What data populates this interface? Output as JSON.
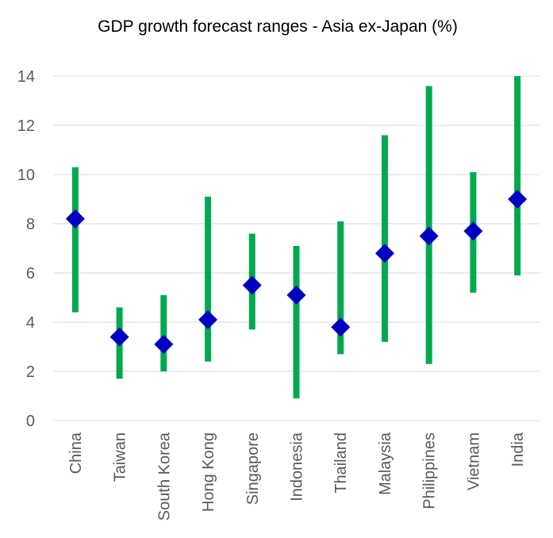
{
  "chart_data": {
    "type": "scatter",
    "title": "GDP growth forecast ranges - Asia ex-Japan (%)",
    "xlabel": "",
    "ylabel": "",
    "ylim": [
      0,
      14
    ],
    "yticks": [
      0,
      2,
      4,
      6,
      8,
      10,
      12,
      14
    ],
    "grid": true,
    "legend": "none",
    "categories": [
      "China",
      "Taiwan",
      "South Korea",
      "Hong Kong",
      "Singapore",
      "Indonesia",
      "Thailand",
      "Malaysia",
      "Philippines",
      "Vietnam",
      "India"
    ],
    "series": [
      {
        "kind": "range",
        "low": [
          4.4,
          1.7,
          2.0,
          2.4,
          3.7,
          0.9,
          2.7,
          3.2,
          2.3,
          5.2,
          5.9
        ],
        "high": [
          10.3,
          4.6,
          5.1,
          9.1,
          7.6,
          7.1,
          8.1,
          11.6,
          13.6,
          10.1,
          14.0
        ]
      },
      {
        "kind": "point",
        "values": [
          8.2,
          3.4,
          3.1,
          4.1,
          5.5,
          5.1,
          3.8,
          6.8,
          7.5,
          7.7,
          9.0
        ]
      }
    ],
    "colors": {
      "range": "#00a94f",
      "point": "#0000c0",
      "grid": "#d9d9d9",
      "text": "#595959"
    }
  }
}
